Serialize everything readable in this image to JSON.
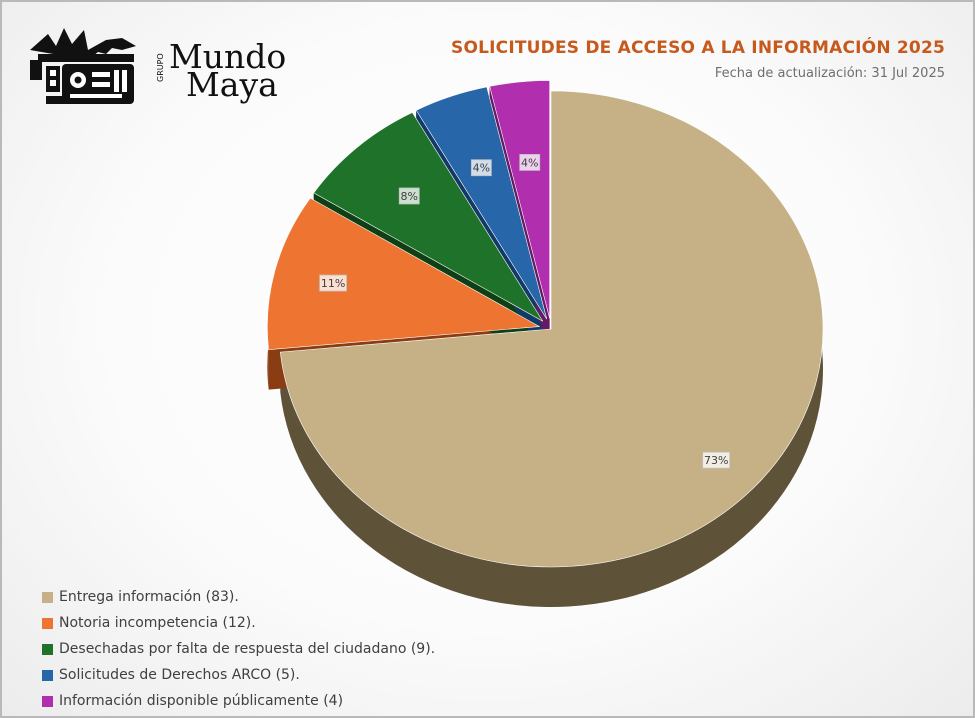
{
  "logo": {
    "kicker": "GRUPO",
    "line1": "Mundo",
    "line2": "Maya",
    "icon": "maya-glyph-icon"
  },
  "header": {
    "title": "SOLICITUDES DE ACCESO A LA INFORMACIÓN 2025",
    "subtitle": "Fecha de actualización: 31 Jul 2025"
  },
  "chart_data": {
    "type": "pie",
    "style": "3d-exploded",
    "legend_position": "bottom-left",
    "slices": [
      {
        "label": "Entrega información (83).",
        "value": 83,
        "percent_label": "73%",
        "color": "#c5b185",
        "side_color": "#5e5339"
      },
      {
        "label": "Notoria incompetencia (12).",
        "value": 12,
        "percent_label": "11%",
        "color": "#ed7431",
        "side_color": "#8a3c12"
      },
      {
        "label": "Desechadas por falta de respuesta del ciudadano (9).",
        "value": 9,
        "percent_label": "8%",
        "color": "#1e7229",
        "side_color": "#0e3f15"
      },
      {
        "label": "Solicitudes de Derechos ARCO (5).",
        "value": 5,
        "percent_label": "4%",
        "color": "#2766a9",
        "side_color": "#123a66"
      },
      {
        "label": "Información disponible públicamente (4)",
        "value": 4,
        "percent_label": "4%",
        "color": "#b12fae",
        "side_color": "#651a63"
      }
    ]
  }
}
